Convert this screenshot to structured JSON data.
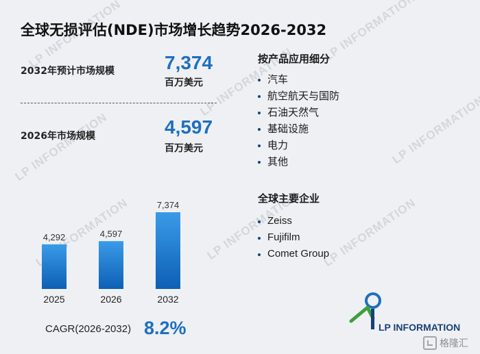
{
  "title": "全球无损评估(NDE)市场增长趋势2026-2032",
  "watermark_text": "LP INFORMATION",
  "stats": [
    {
      "label": "2032年预计市场规模",
      "value": "7,374",
      "unit": "百万美元"
    },
    {
      "label": "2026年市场规模",
      "value": "4,597",
      "unit": "百万美元"
    }
  ],
  "chart_data": {
    "type": "bar",
    "title": "",
    "xlabel": "",
    "ylabel": "",
    "categories": [
      "2025",
      "2026",
      "2032"
    ],
    "values": [
      4292,
      4597,
      7374
    ],
    "value_labels": [
      "4,292",
      "4,597",
      "7,374"
    ],
    "ylim": [
      0,
      8000
    ],
    "grid": false,
    "bar_color_top": "#3a9be8",
    "bar_color_bottom": "#0d5fb5"
  },
  "cagr": {
    "label": "CAGR(2026-2032)",
    "value": "8.2%"
  },
  "segments": {
    "title": "按产品应用细分",
    "items": [
      "汽车",
      "航空航天与国防",
      "石油天然气",
      "基础设施",
      "电力",
      "其他"
    ]
  },
  "companies": {
    "title": "全球主要企业",
    "items": [
      "Zeiss",
      "Fujifilm",
      "Comet Group"
    ]
  },
  "logo_text": "LP INFORMATION",
  "source_badge": "格隆汇",
  "colors": {
    "accent": "#1e6fc0",
    "navy": "#1a3f77",
    "green": "#3aa03a"
  }
}
